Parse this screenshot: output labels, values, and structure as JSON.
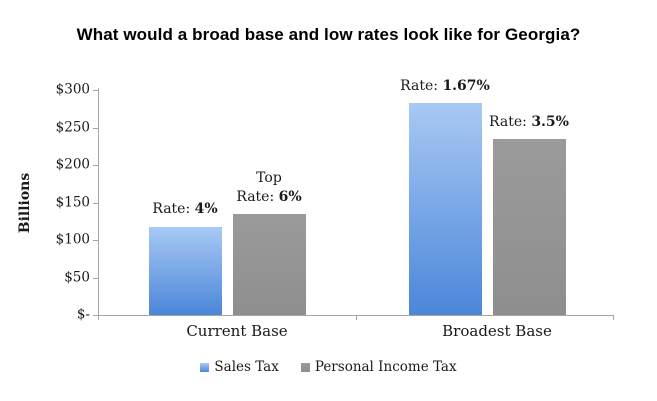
{
  "chart_data": {
    "type": "bar",
    "title": "What would a broad base and low rates look like for Georgia?",
    "ylabel": "Billions",
    "xlabel": "",
    "ylim": [
      0,
      300
    ],
    "grid": false,
    "legend_position": "bottom",
    "y_ticks": [
      {
        "value": 300,
        "label": "$300"
      },
      {
        "value": 250,
        "label": "$250"
      },
      {
        "value": 200,
        "label": "$200"
      },
      {
        "value": 150,
        "label": "$150"
      },
      {
        "value": 100,
        "label": "$100"
      },
      {
        "value": 50,
        "label": "$50"
      },
      {
        "value": 0,
        "label": "$-"
      }
    ],
    "categories": [
      "Current Base",
      "Broadest Base"
    ],
    "series": [
      {
        "name": "Sales Tax",
        "values": [
          118,
          283
        ],
        "color_top": "#A8C9F4",
        "color_bottom": "#4B86D9",
        "annotations": [
          {
            "lines": [
              {
                "text": "Rate: ",
                "bold": "4%"
              }
            ]
          },
          {
            "lines": [
              {
                "text": "Rate: ",
                "bold": "1.67%"
              }
            ]
          }
        ]
      },
      {
        "name": "Personal Income Tax",
        "values": [
          135,
          235
        ],
        "color_top": "#9B9B9B",
        "color_bottom": "#8E8E8E",
        "annotations": [
          {
            "lines": [
              {
                "text": "Top"
              },
              {
                "text": "Rate: ",
                "bold": "6%"
              }
            ]
          },
          {
            "lines": [
              {
                "text": "Rate: ",
                "bold": "3.5%"
              }
            ]
          }
        ]
      }
    ],
    "legend": [
      {
        "label": "Sales Tax"
      },
      {
        "label": "Personal Income Tax"
      }
    ]
  },
  "colors": {
    "axis": "#A6A6A6",
    "text": "#1A1A1A",
    "title": "#000000",
    "background": "#FFFFFF",
    "sales_tax_top": "#A8C9F4",
    "sales_tax_bottom": "#4B86D9",
    "income_tax": "#949494"
  }
}
